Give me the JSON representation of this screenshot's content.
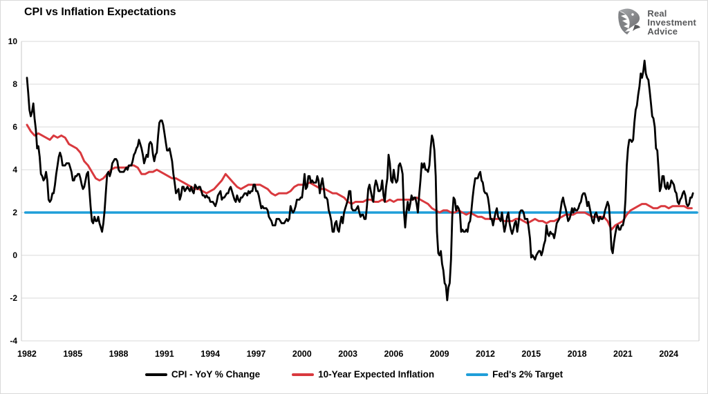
{
  "header": {
    "title": "CPI vs Inflation Expectations"
  },
  "logo": {
    "line1": "Real",
    "line2": "Investment",
    "line3": "Advice",
    "color": "#58595b",
    "icon": "eagle-head"
  },
  "colors": {
    "grid": "#d9d9d9",
    "axis_border": "#c8c8c8",
    "text": "#000000"
  },
  "chart_data": {
    "type": "line",
    "title": "CPI vs Inflation Expectations",
    "xlabel": "",
    "ylabel": "",
    "x_axis": {
      "range": [
        1981.64,
        2025.98
      ],
      "ticks": [
        1982,
        1985,
        1988,
        1991,
        1994,
        1997,
        2000,
        2003,
        2006,
        2009,
        2012,
        2015,
        2018,
        2021,
        2024
      ],
      "grid": false
    },
    "y_axis": {
      "range": [
        -4,
        10
      ],
      "ticks": [
        10,
        8,
        6,
        4,
        2,
        0,
        -2,
        -4
      ],
      "grid": true
    },
    "legend_position": "bottom",
    "series": [
      {
        "name": "CPI - YoY % Change",
        "color": "#000000",
        "width": 2.8,
        "x_start": 1982.0,
        "x_step": 0.0833333,
        "values": [
          8.3,
          7.6,
          6.8,
          6.5,
          6.7,
          7.1,
          6.4,
          5.9,
          5.0,
          5.1,
          4.6,
          3.8,
          3.7,
          3.5,
          3.6,
          3.9,
          3.5,
          2.6,
          2.5,
          2.6,
          2.9,
          2.9,
          3.3,
          3.8,
          4.2,
          4.6,
          4.8,
          4.6,
          4.2,
          4.2,
          4.2,
          4.3,
          4.3,
          4.3,
          4.1,
          3.9,
          3.5,
          3.5,
          3.7,
          3.7,
          3.8,
          3.8,
          3.6,
          3.3,
          3.1,
          3.2,
          3.5,
          3.8,
          3.9,
          3.1,
          2.3,
          1.6,
          1.5,
          1.8,
          1.6,
          1.6,
          1.8,
          1.5,
          1.3,
          1.1,
          1.5,
          2.1,
          3.0,
          3.8,
          3.9,
          3.7,
          3.9,
          4.3,
          4.4,
          4.5,
          4.5,
          4.4,
          4.0,
          3.9,
          3.9,
          3.9,
          3.9,
          4.0,
          4.1,
          4.0,
          4.2,
          4.2,
          4.2,
          4.4,
          4.7,
          4.8,
          5.0,
          5.1,
          5.4,
          5.2,
          5.0,
          4.7,
          4.3,
          4.5,
          4.7,
          4.6,
          5.2,
          5.3,
          5.2,
          4.7,
          4.4,
          4.7,
          4.8,
          5.6,
          6.2,
          6.3,
          6.3,
          6.1,
          5.7,
          5.3,
          4.9,
          4.9,
          5.0,
          4.7,
          4.4,
          3.8,
          3.4,
          2.9,
          3.0,
          3.1,
          2.6,
          2.8,
          3.2,
          3.2,
          3.0,
          3.1,
          3.2,
          3.1,
          3.0,
          3.2,
          3.0,
          2.9,
          3.3,
          3.2,
          3.1,
          3.2,
          3.2,
          3.0,
          2.8,
          2.8,
          2.7,
          2.8,
          2.7,
          2.7,
          2.5,
          2.5,
          2.5,
          2.4,
          2.3,
          2.5,
          2.8,
          2.9,
          3.0,
          2.6,
          2.7,
          2.7,
          2.8,
          2.9,
          2.9,
          3.1,
          3.2,
          3.0,
          2.8,
          2.6,
          2.5,
          2.8,
          2.6,
          2.5,
          2.7,
          2.7,
          2.8,
          2.9,
          2.9,
          2.8,
          3.0,
          2.9,
          3.0,
          3.0,
          3.3,
          3.3,
          3.0,
          3.0,
          2.8,
          2.5,
          2.2,
          2.3,
          2.2,
          2.2,
          2.2,
          2.1,
          1.8,
          1.7,
          1.6,
          1.4,
          1.4,
          1.4,
          1.7,
          1.7,
          1.7,
          1.6,
          1.5,
          1.5,
          1.5,
          1.6,
          1.7,
          1.6,
          1.7,
          2.3,
          2.1,
          2.0,
          2.1,
          2.3,
          2.6,
          2.6,
          2.6,
          2.7,
          2.7,
          3.2,
          3.8,
          3.1,
          3.2,
          3.7,
          3.7,
          3.4,
          3.5,
          3.4,
          3.4,
          3.4,
          3.7,
          3.5,
          2.9,
          3.3,
          3.6,
          3.2,
          2.7,
          2.7,
          2.6,
          2.1,
          1.9,
          1.6,
          1.1,
          1.1,
          1.5,
          1.6,
          1.2,
          1.1,
          1.5,
          1.8,
          1.5,
          2.0,
          2.2,
          2.4,
          2.6,
          3.0,
          3.0,
          2.2,
          2.1,
          2.1,
          2.1,
          2.2,
          2.3,
          2.0,
          1.8,
          1.9,
          1.9,
          1.7,
          1.7,
          2.3,
          3.1,
          3.3,
          3.0,
          2.7,
          2.5,
          3.2,
          3.5,
          3.3,
          3.0,
          3.0,
          3.1,
          3.5,
          2.8,
          2.5,
          3.2,
          3.6,
          4.7,
          4.3,
          3.5,
          3.4,
          4.0,
          3.6,
          3.4,
          3.5,
          4.2,
          4.3,
          4.1,
          3.8,
          2.1,
          1.3,
          2.0,
          2.5,
          2.1,
          2.4,
          2.8,
          2.6,
          2.7,
          2.7,
          2.4,
          2.0,
          2.8,
          3.5,
          4.3,
          4.1,
          4.3,
          4.0,
          4.0,
          3.9,
          4.2,
          5.0,
          5.6,
          5.4,
          4.9,
          3.7,
          1.1,
          0.1,
          0.0,
          0.2,
          -0.4,
          -0.7,
          -1.3,
          -1.4,
          -2.1,
          -1.5,
          -1.3,
          -0.2,
          1.8,
          2.7,
          2.6,
          2.1,
          2.3,
          2.2,
          2.0,
          1.1,
          1.2,
          1.1,
          1.1,
          1.2,
          1.1,
          1.5,
          1.6,
          2.1,
          2.7,
          3.2,
          3.6,
          3.6,
          3.6,
          3.8,
          3.9,
          3.5,
          3.4,
          3.0,
          2.9,
          2.9,
          2.7,
          2.3,
          1.7,
          1.7,
          1.4,
          1.7,
          2.0,
          2.2,
          1.8,
          1.7,
          1.6,
          2.0,
          1.5,
          1.1,
          1.4,
          1.8,
          2.0,
          1.5,
          1.2,
          1.0,
          1.2,
          1.5,
          1.6,
          1.1,
          1.5,
          2.0,
          2.1,
          2.1,
          2.0,
          1.7,
          1.7,
          1.7,
          1.3,
          0.8,
          -0.1,
          0.0,
          -0.1,
          -0.2,
          0.0,
          0.1,
          0.2,
          0.2,
          0.0,
          0.2,
          0.5,
          0.7,
          1.4,
          1.0,
          0.9,
          1.1,
          1.0,
          1.0,
          0.8,
          1.1,
          1.5,
          1.6,
          1.7,
          2.1,
          2.5,
          2.7,
          2.4,
          2.2,
          1.9,
          1.6,
          1.7,
          1.9,
          2.2,
          2.0,
          2.2,
          2.1,
          2.1,
          2.2,
          2.4,
          2.5,
          2.8,
          2.9,
          2.9,
          2.7,
          2.3,
          2.5,
          2.2,
          1.9,
          1.6,
          1.5,
          1.9,
          2.0,
          1.8,
          1.6,
          1.8,
          1.7,
          1.7,
          1.8,
          2.1,
          2.3,
          2.5,
          2.3,
          1.5,
          0.3,
          0.1,
          0.6,
          1.0,
          1.3,
          1.4,
          1.2,
          1.2,
          1.4,
          1.4,
          1.7,
          2.6,
          4.2,
          5.0,
          5.4,
          5.4,
          5.3,
          5.4,
          6.2,
          6.8,
          7.0,
          7.5,
          7.9,
          8.5,
          8.3,
          8.6,
          9.1,
          8.5,
          8.3,
          8.2,
          7.7,
          7.1,
          6.5,
          6.4,
          6.0,
          5.0,
          4.9,
          4.0,
          3.0,
          3.2,
          3.7,
          3.7,
          3.2,
          3.1,
          3.4,
          3.1,
          3.2,
          3.5,
          3.4,
          3.3,
          3.0,
          2.9,
          2.5,
          2.4,
          2.6,
          2.7,
          2.9,
          3.0,
          2.8,
          2.4,
          2.3,
          2.4,
          2.7,
          2.7,
          2.9
        ]
      },
      {
        "name": "10-Year Expected Inflation",
        "color": "#d9393e",
        "width": 3.0,
        "x_start": 1982.0,
        "x_step": 0.25,
        "values": [
          6.1,
          5.8,
          5.6,
          5.7,
          5.6,
          5.5,
          5.4,
          5.6,
          5.5,
          5.6,
          5.5,
          5.2,
          5.1,
          5.0,
          4.8,
          4.4,
          4.2,
          3.9,
          3.6,
          3.5,
          3.6,
          3.8,
          4.0,
          4.1,
          4.1,
          4.1,
          4.1,
          4.2,
          4.2,
          4.1,
          3.8,
          3.8,
          3.9,
          3.9,
          4.0,
          3.9,
          3.8,
          3.7,
          3.6,
          3.6,
          3.5,
          3.4,
          3.3,
          3.2,
          3.1,
          3.1,
          3.0,
          2.9,
          3.0,
          3.1,
          3.3,
          3.5,
          3.8,
          3.6,
          3.4,
          3.2,
          3.1,
          3.2,
          3.3,
          3.3,
          3.3,
          3.3,
          3.2,
          3.1,
          2.9,
          2.8,
          2.9,
          2.9,
          2.9,
          3.0,
          3.2,
          3.3,
          3.3,
          3.3,
          3.4,
          3.3,
          3.2,
          3.1,
          3.1,
          3.0,
          2.9,
          2.9,
          2.8,
          2.7,
          2.5,
          2.4,
          2.5,
          2.5,
          2.5,
          2.6,
          2.6,
          2.5,
          2.5,
          2.6,
          2.5,
          2.6,
          2.5,
          2.6,
          2.6,
          2.6,
          2.6,
          2.6,
          2.7,
          2.6,
          2.5,
          2.4,
          2.2,
          2.1,
          2.0,
          2.1,
          2.1,
          2.0,
          2.0,
          2.1,
          2.0,
          1.9,
          2.0,
          1.9,
          1.8,
          1.8,
          1.7,
          1.7,
          1.7,
          1.7,
          1.7,
          1.6,
          1.6,
          1.6,
          1.7,
          1.7,
          1.6,
          1.5,
          1.6,
          1.7,
          1.6,
          1.6,
          1.5,
          1.6,
          1.6,
          1.7,
          1.8,
          1.9,
          1.9,
          1.9,
          2.0,
          2.0,
          2.0,
          1.9,
          1.8,
          1.8,
          1.8,
          1.8,
          1.6,
          1.2,
          1.4,
          1.5,
          1.6,
          1.9,
          2.1,
          2.2,
          2.3,
          2.4,
          2.4,
          2.3,
          2.2,
          2.2,
          2.3,
          2.3,
          2.2,
          2.3,
          2.3,
          2.3,
          2.3,
          2.2,
          2.2
        ]
      },
      {
        "name": "Fed's 2% Target",
        "color": "#1f9ed9",
        "width": 3.5,
        "x_start": 1981.9,
        "x_step": 43.95,
        "values": [
          2,
          2
        ]
      }
    ]
  }
}
